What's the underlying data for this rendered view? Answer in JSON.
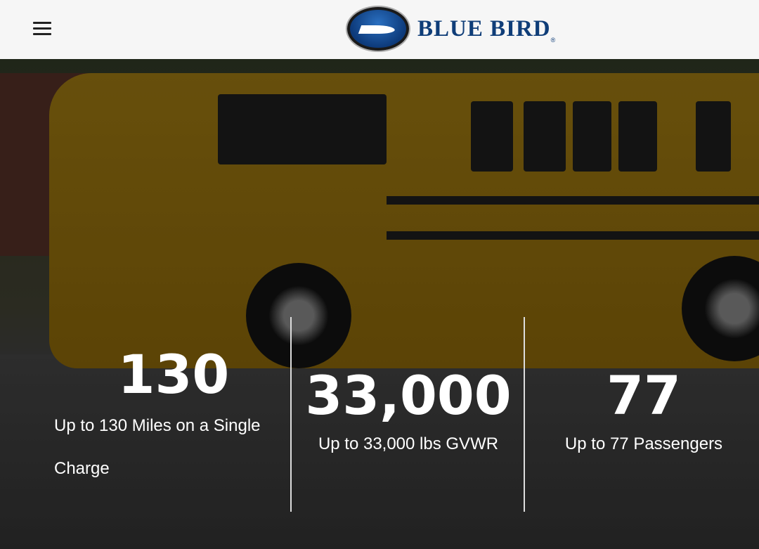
{
  "header": {
    "menu_icon": "hamburger-menu-icon",
    "logo_text": "BLUE BIRD",
    "logo_reg": "®"
  },
  "stats": [
    {
      "value": "130",
      "label": "Up to 130 Miles on a Single Charge"
    },
    {
      "value": "33,000",
      "label": "Up to 33,000 lbs GVWR"
    },
    {
      "value": "77",
      "label": "Up to 77 Passengers"
    }
  ],
  "colors": {
    "brand": "#0f3d78",
    "header_bg": "#f6f6f6"
  }
}
